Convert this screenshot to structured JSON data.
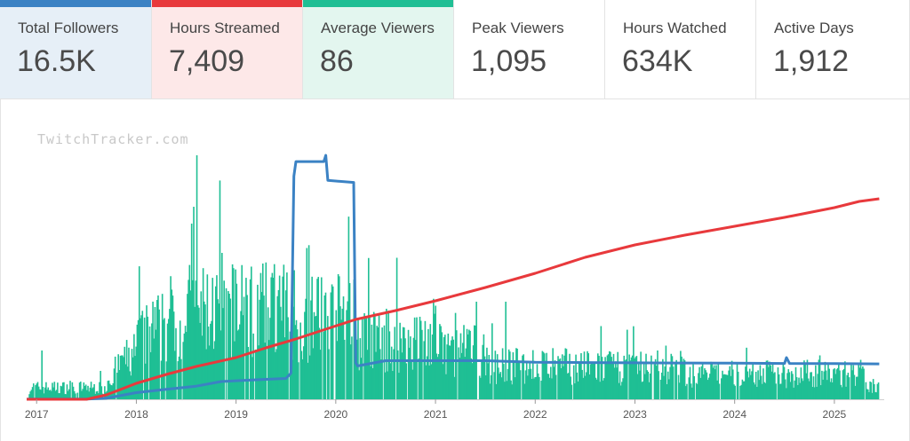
{
  "stats": [
    {
      "label": "Total Followers",
      "value": "16.5K",
      "bg": "#e6eff7",
      "accent": "#3b82c4"
    },
    {
      "label": "Hours Streamed",
      "value": "7,409",
      "bg": "#fde8e8",
      "accent": "#e8393c"
    },
    {
      "label": "Average Viewers",
      "value": "86",
      "bg": "#e3f6ef",
      "accent": "#1fbf94"
    },
    {
      "label": "Peak Viewers",
      "value": "1,095",
      "bg": "#ffffff",
      "accent": ""
    },
    {
      "label": "Hours Watched",
      "value": "634K",
      "bg": "#ffffff",
      "accent": ""
    },
    {
      "label": "Active Days",
      "value": "1,912",
      "bg": "#ffffff",
      "accent": ""
    }
  ],
  "watermark": "TwitchTracker.com",
  "chart_data": {
    "type": "bar",
    "xlabels": [
      "2017",
      "2018",
      "2019",
      "2020",
      "2021",
      "2022",
      "2023",
      "2024",
      "2025"
    ],
    "x_range": [
      2016.9,
      2025.5
    ],
    "colors": {
      "bars": "#1fbf94",
      "followers": "#e8393c",
      "avg_viewers": "#3b82c4"
    },
    "series": [
      {
        "kind": "line",
        "x": [
          2016.9,
          2017.2,
          2017.5,
          2017.7,
          2018.0,
          2018.3,
          2018.6,
          2019.0,
          2019.3,
          2019.6,
          2019.9,
          2020.2,
          2020.6,
          2021.0,
          2021.5,
          2022.0,
          2022.5,
          2023.0,
          2023.5,
          2024.0,
          2024.5,
          2025.0,
          2025.25,
          2025.45
        ],
        "values": [
          0.0,
          0.0,
          0.0,
          0.05,
          0.18,
          0.28,
          0.37,
          0.47,
          0.58,
          0.68,
          0.79,
          0.9,
          1.0,
          1.11,
          1.26,
          1.42,
          1.6,
          1.74,
          1.85,
          1.95,
          2.05,
          2.16,
          2.23,
          2.26
        ]
      },
      {
        "kind": "line",
        "x": [
          2016.9,
          2017.2,
          2017.5,
          2017.7,
          2018.0,
          2018.3,
          2018.6,
          2018.85,
          2019.0,
          2019.25,
          2019.5,
          2019.55,
          2019.58,
          2019.6,
          2019.88,
          2019.9,
          2019.92,
          2020.18,
          2020.2,
          2020.22,
          2020.5,
          2021.0,
          2021.5,
          2022.0,
          2022.5,
          2023.0,
          2023.5,
          2024.0,
          2024.5,
          2024.52,
          2024.55,
          2025.0,
          2025.45
        ],
        "values": [
          0.1,
          0.1,
          0.1,
          0.5,
          3.2,
          4.8,
          6.3,
          8.5,
          8.9,
          9.5,
          10.0,
          12.5,
          107.0,
          114.0,
          114.0,
          117.0,
          105.0,
          104.0,
          17.5,
          16.0,
          18.5,
          18.5,
          18.5,
          17.8,
          17.6,
          17.5,
          17.4,
          17.3,
          17.2,
          20.0,
          17.2,
          17.1,
          17.0
        ]
      }
    ],
    "bar_peak": 1095
  }
}
